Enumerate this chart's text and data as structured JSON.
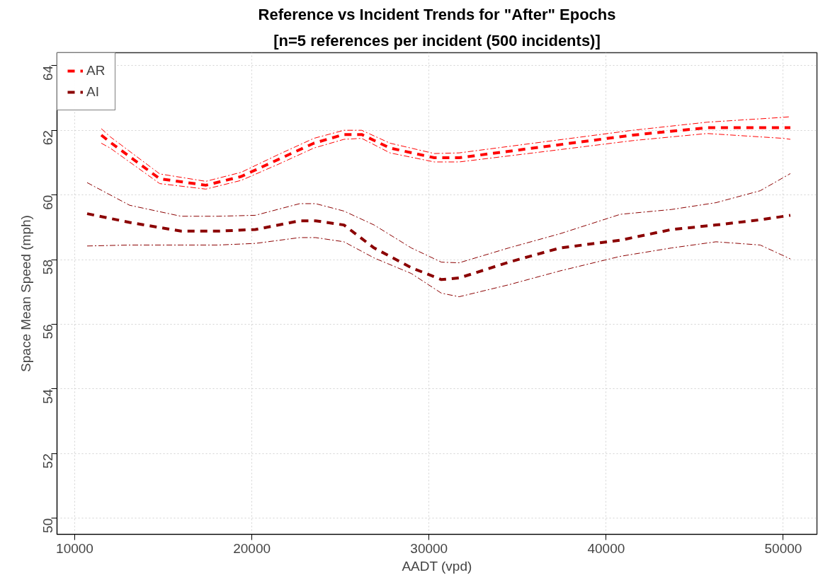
{
  "chart_data": {
    "type": "line",
    "title": "Reference vs Incident Trends for \"After\" Epochs",
    "subtitle": "[n=5 references per incident (500 incidents)]",
    "xlabel": "AADT (vpd)",
    "ylabel": "Space Mean Speed (mph)",
    "xlim": [
      9000,
      51900
    ],
    "ylim": [
      49.5,
      64.4
    ],
    "xticks": [
      10000,
      20000,
      30000,
      40000,
      50000
    ],
    "yticks": [
      50,
      52,
      54,
      56,
      58,
      60,
      62,
      64
    ],
    "grid": true,
    "legend": "top left",
    "line_style": "dashed",
    "marker": "none",
    "series": [
      {
        "name": "AR",
        "color": "#ff0000",
        "x": [
          11500,
          12000,
          14800,
          17400,
          19400,
          21500,
          23500,
          25200,
          26200,
          27800,
          30300,
          31700,
          35900,
          41500,
          45700,
          50000,
          50400
        ],
        "values": [
          61.85,
          61.63,
          60.5,
          60.3,
          60.57,
          61.1,
          61.6,
          61.87,
          61.87,
          61.45,
          61.15,
          61.15,
          61.45,
          61.85,
          62.08,
          62.08,
          62.08
        ]
      },
      {
        "color": "#ff0000",
        "line_style": "dashdot",
        "x": [
          11500,
          12000,
          14800,
          17400,
          19400,
          21500,
          23500,
          25200,
          26200,
          27800,
          30300,
          31700,
          35900,
          41500,
          45700,
          50000,
          50400
        ],
        "values": [
          62.05,
          61.8,
          60.65,
          60.42,
          60.7,
          61.25,
          61.75,
          62.0,
          62.0,
          61.6,
          61.28,
          61.3,
          61.6,
          62.0,
          62.25,
          62.4,
          62.42
        ]
      },
      {
        "color": "#ff0000",
        "line_style": "dashdot",
        "x": [
          11500,
          12000,
          14800,
          17400,
          19400,
          21500,
          23500,
          25200,
          26200,
          27800,
          30300,
          31700,
          35900,
          41500,
          45700,
          50000,
          50400
        ],
        "values": [
          61.6,
          61.45,
          60.35,
          60.18,
          60.45,
          60.95,
          61.45,
          61.72,
          61.75,
          61.3,
          61.02,
          61.02,
          61.3,
          61.68,
          61.9,
          61.75,
          61.72
        ]
      },
      {
        "name": "AI",
        "color": "#8b0000",
        "x": [
          10700,
          13100,
          16000,
          18100,
          20200,
          22700,
          23600,
          25200,
          26900,
          29000,
          30700,
          31700,
          34500,
          37400,
          40800,
          43700,
          46200,
          48700,
          50400
        ],
        "values": [
          59.42,
          59.15,
          58.88,
          58.88,
          58.93,
          59.2,
          59.2,
          59.07,
          58.36,
          57.75,
          57.38,
          57.43,
          57.92,
          58.36,
          58.6,
          58.93,
          59.07,
          59.23,
          59.37
        ]
      },
      {
        "color": "#8b0000",
        "line_style": "dashdot",
        "x": [
          10700,
          13100,
          16000,
          18100,
          20200,
          22700,
          23600,
          25200,
          26900,
          29000,
          30700,
          31700,
          34500,
          37400,
          40800,
          43700,
          46200,
          48700,
          50400
        ],
        "values": [
          60.38,
          59.68,
          59.34,
          59.34,
          59.37,
          59.73,
          59.73,
          59.5,
          59.07,
          58.36,
          57.92,
          57.9,
          58.36,
          58.8,
          59.4,
          59.55,
          59.76,
          60.13,
          60.66
        ]
      },
      {
        "color": "#8b0000",
        "line_style": "dashdot",
        "x": [
          10700,
          13100,
          16000,
          18100,
          20200,
          22700,
          23600,
          25200,
          26900,
          29000,
          30700,
          31700,
          34500,
          37400,
          40800,
          43700,
          46200,
          48700,
          50400
        ],
        "values": [
          58.42,
          58.45,
          58.45,
          58.45,
          58.5,
          58.68,
          58.68,
          58.55,
          58.05,
          57.57,
          56.96,
          56.85,
          57.22,
          57.65,
          58.1,
          58.36,
          58.55,
          58.45,
          58.02
        ]
      }
    ]
  }
}
